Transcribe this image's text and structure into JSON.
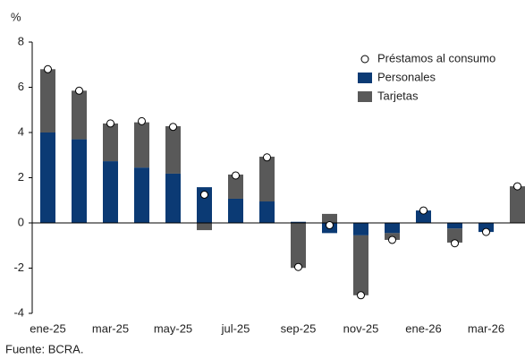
{
  "chart_data": {
    "type": "bar",
    "stacked": true,
    "y_unit_label": "%",
    "source": "Fuente: BCRA.",
    "categories": [
      "ene-25",
      null,
      "mar-25",
      null,
      "may-25",
      null,
      "jul-25",
      null,
      "sep-25",
      null,
      "nov-25",
      null,
      "ene-26",
      null,
      "mar-26",
      null
    ],
    "series": [
      {
        "name": "Préstamos al consumo",
        "type": "scatter",
        "color": "#ffffff",
        "values": [
          6.8,
          5.85,
          4.4,
          4.5,
          4.25,
          1.25,
          2.1,
          2.9,
          -1.95,
          -0.1,
          -3.2,
          -0.75,
          0.55,
          -0.9,
          -0.4,
          1.62
        ]
      },
      {
        "name": "Personales",
        "type": "bar",
        "color": "#0b3a74",
        "values": [
          4.0,
          3.7,
          2.73,
          2.45,
          2.18,
          1.58,
          1.07,
          0.95,
          0.05,
          -0.45,
          -0.55,
          -0.45,
          0.55,
          -0.25,
          -0.4,
          0.0
        ]
      },
      {
        "name": "Tarjetas",
        "type": "bar",
        "color": "#595959",
        "values": [
          2.8,
          2.15,
          1.67,
          2.0,
          2.1,
          -0.32,
          1.07,
          1.98,
          -1.99,
          0.4,
          -2.65,
          -0.3,
          0.0,
          -0.62,
          0.0,
          1.62
        ]
      }
    ],
    "ylim": [
      -4,
      8
    ],
    "yticks": [
      -4,
      -2,
      0,
      2,
      4,
      6,
      8
    ],
    "legend": "top-right"
  }
}
